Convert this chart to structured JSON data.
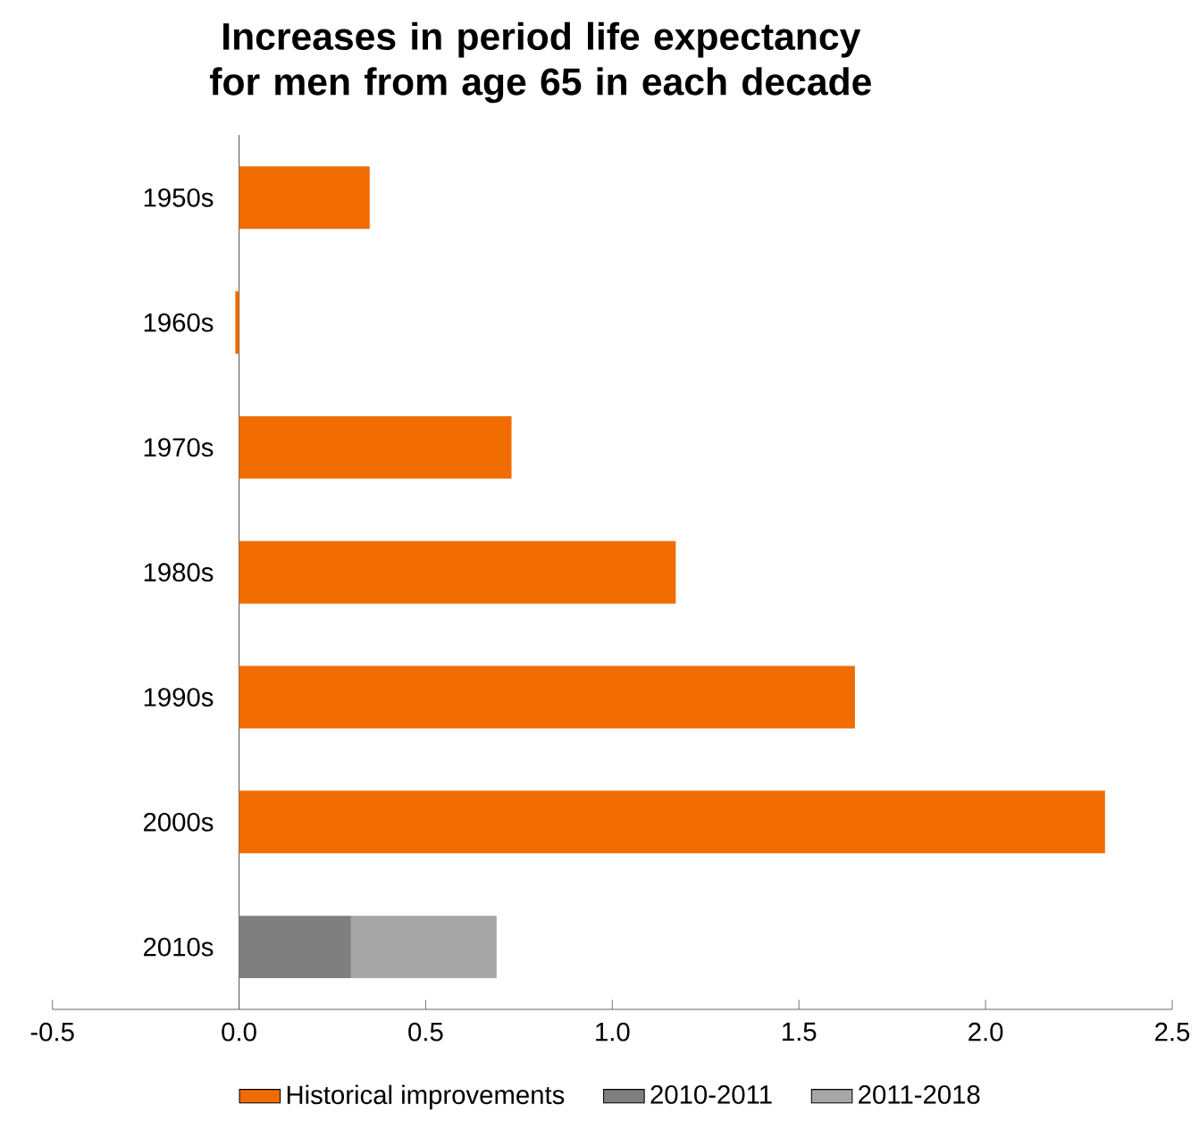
{
  "chart_data": {
    "type": "bar",
    "orientation": "horizontal",
    "stacked": true,
    "title": "Increases in period life expectancy for men from age 65 in each decade",
    "categories": [
      "1950s",
      "1960s",
      "1970s",
      "1980s",
      "1990s",
      "2000s",
      "2010s"
    ],
    "series": [
      {
        "name": "Historical improvements",
        "color": "#f06c00",
        "values": [
          0.35,
          -0.01,
          0.73,
          1.17,
          1.65,
          2.32,
          null
        ]
      },
      {
        "name": "2010-2011",
        "color": "#7f7f7f",
        "values": [
          null,
          null,
          null,
          null,
          null,
          null,
          0.3
        ]
      },
      {
        "name": "2011-2018",
        "color": "#a6a6a6",
        "values": [
          null,
          null,
          null,
          null,
          null,
          null,
          0.39
        ]
      }
    ],
    "xlim": [
      -0.5,
      2.5
    ],
    "xticks": [
      {
        "value": -0.5,
        "label": "-0.5"
      },
      {
        "value": 0,
        "label": "0.0"
      },
      {
        "value": 0.5,
        "label": "0.5"
      },
      {
        "value": 1,
        "label": "1.0"
      },
      {
        "value": 1.5,
        "label": "1.5"
      },
      {
        "value": 2,
        "label": "2.0"
      },
      {
        "value": 2.5,
        "label": "2.5"
      }
    ],
    "grid": false,
    "legend": "bottom"
  }
}
